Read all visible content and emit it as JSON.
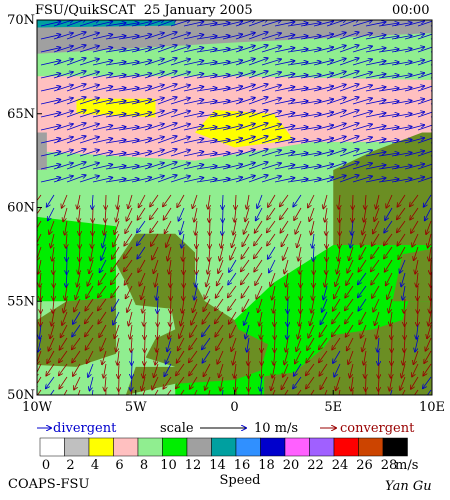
{
  "header": {
    "title": "FSU/QuikSCAT  25 January 2005",
    "time": "00:00"
  },
  "map": {
    "lonlim": [
      -10,
      10
    ],
    "latlim": [
      50,
      70
    ],
    "lon_ticks": [
      {
        "value": -10,
        "label": "10W"
      },
      {
        "value": -5,
        "label": "5W"
      },
      0,
      {
        "value": 5,
        "label": "5E"
      },
      {
        "value": 10,
        "label": "10E"
      }
    ],
    "lat_ticks": [
      {
        "value": 70,
        "label": "70N"
      },
      {
        "value": 65,
        "label": "65N"
      },
      {
        "value": 60,
        "label": "60N"
      },
      {
        "value": 55,
        "label": "55N"
      },
      {
        "value": 50,
        "label": "50N"
      }
    ]
  },
  "legend": {
    "divergent": "divergent",
    "scale": "scale",
    "scale_value": "10 m/s",
    "convergent": "convergent",
    "divergent_color": "#0000cc",
    "convergent_color": "#990000"
  },
  "colorbar": {
    "ticks": [
      0,
      2,
      4,
      6,
      8,
      10,
      12,
      14,
      16,
      18,
      20,
      22,
      24,
      26,
      28
    ],
    "colors": [
      "#ffffff",
      "#c0c0c0",
      "#ffff00",
      "#ffc0c0",
      "#90ee90",
      "#00ee00",
      "#a0a0a0",
      "#00a0a0",
      "#3090ff",
      "#0000cc",
      "#ff60ff",
      "#a060ff",
      "#ff0000",
      "#cc4400",
      "#000000"
    ],
    "unit": "m/s",
    "title": "Speed"
  },
  "footer": {
    "left": "COAPS-FSU",
    "right": "Yan Gu"
  }
}
